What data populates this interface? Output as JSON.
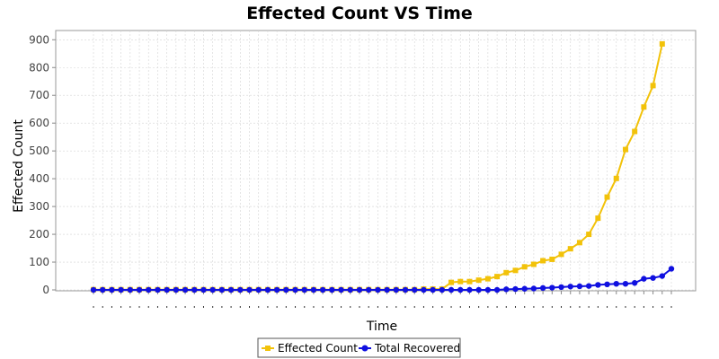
{
  "chart_data": {
    "type": "line",
    "title": "Effected Count VS Time",
    "xlabel": "Time",
    "ylabel": "Effected Count",
    "ylim": [
      0,
      930
    ],
    "yticks": [
      0,
      100,
      200,
      300,
      400,
      500,
      600,
      700,
      800,
      900
    ],
    "grid": true,
    "legend_position": "bottom",
    "series": [
      {
        "name": "Effected Count",
        "color": "#f2c20a",
        "marker": "square",
        "values": [
          1,
          1,
          1,
          1,
          1,
          1,
          1,
          1,
          1,
          1,
          1,
          1,
          1,
          1,
          1,
          1,
          1,
          1,
          1,
          1,
          1,
          1,
          1,
          1,
          1,
          1,
          1,
          1,
          1,
          1,
          1,
          1,
          1,
          1,
          1,
          1,
          3,
          3,
          3,
          27,
          30,
          30,
          35,
          40,
          48,
          62,
          70,
          83,
          92,
          105,
          110,
          128,
          148,
          170,
          200,
          258,
          334,
          401,
          505,
          570,
          658,
          735,
          885
        ]
      },
      {
        "name": "Total Recovered",
        "color": "#1010e0",
        "marker": "circle",
        "values": [
          0,
          0,
          0,
          0,
          0,
          0,
          0,
          0,
          0,
          0,
          0,
          0,
          0,
          0,
          0,
          0,
          0,
          0,
          0,
          0,
          0,
          0,
          0,
          0,
          0,
          0,
          0,
          0,
          0,
          0,
          0,
          0,
          0,
          0,
          0,
          0,
          0,
          0,
          0,
          0,
          0,
          0,
          0,
          0,
          0,
          2,
          3,
          4,
          5,
          7,
          8,
          10,
          12,
          13,
          14,
          18,
          20,
          22,
          22,
          25,
          40,
          43,
          50,
          76
        ]
      }
    ]
  }
}
